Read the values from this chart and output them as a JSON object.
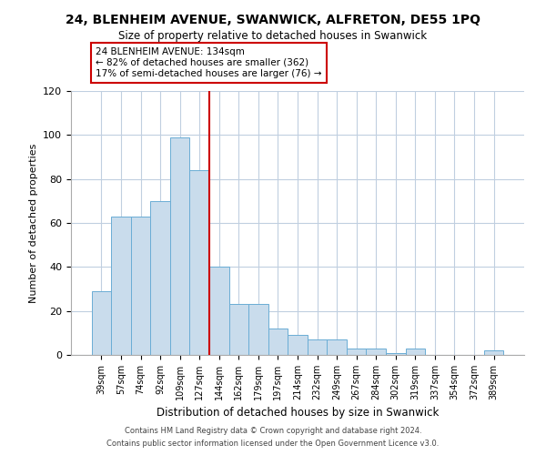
{
  "title": "24, BLENHEIM AVENUE, SWANWICK, ALFRETON, DE55 1PQ",
  "subtitle": "Size of property relative to detached houses in Swanwick",
  "xlabel": "Distribution of detached houses by size in Swanwick",
  "ylabel": "Number of detached properties",
  "bin_labels": [
    "39sqm",
    "57sqm",
    "74sqm",
    "92sqm",
    "109sqm",
    "127sqm",
    "144sqm",
    "162sqm",
    "179sqm",
    "197sqm",
    "214sqm",
    "232sqm",
    "249sqm",
    "267sqm",
    "284sqm",
    "302sqm",
    "319sqm",
    "337sqm",
    "354sqm",
    "372sqm",
    "389sqm"
  ],
  "bar_values": [
    29,
    63,
    63,
    70,
    99,
    84,
    40,
    23,
    23,
    12,
    9,
    7,
    7,
    3,
    3,
    1,
    3,
    0,
    0,
    0,
    2
  ],
  "bar_color": "#c9dcec",
  "bar_edge_color": "#6aadd5",
  "vline_x": 5.5,
  "vline_color": "#cc0000",
  "annotation_title": "24 BLENHEIM AVENUE: 134sqm",
  "annotation_line1": "← 82% of detached houses are smaller (362)",
  "annotation_line2": "17% of semi-detached houses are larger (76) →",
  "annotation_box_edge": "#cc0000",
  "ylim": [
    0,
    120
  ],
  "yticks": [
    0,
    20,
    40,
    60,
    80,
    100,
    120
  ],
  "footer1": "Contains HM Land Registry data © Crown copyright and database right 2024.",
  "footer2": "Contains public sector information licensed under the Open Government Licence v3.0.",
  "background_color": "#ffffff",
  "grid_color": "#c0cfe0"
}
